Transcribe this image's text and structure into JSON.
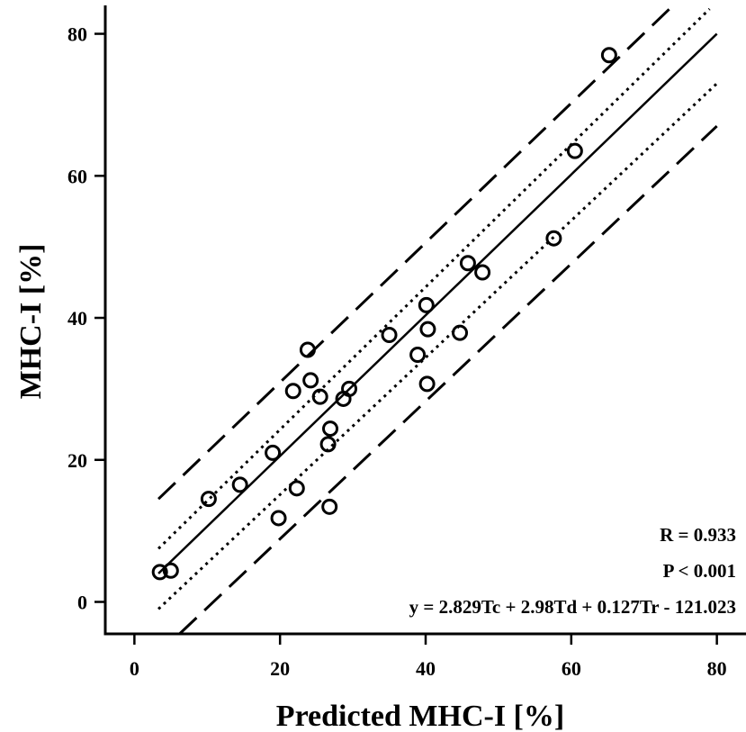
{
  "chart_data": {
    "type": "scatter",
    "xlabel": "Predicted MHC-I [%]",
    "ylabel": "MHC-I [%]",
    "xlim": [
      -4,
      84
    ],
    "ylim": [
      -4.5,
      84
    ],
    "xticks": [
      0,
      20,
      40,
      60,
      80
    ],
    "yticks": [
      0,
      20,
      40,
      60,
      80
    ],
    "points": [
      {
        "x": 3.5,
        "y": 4.2
      },
      {
        "x": 5.0,
        "y": 4.4
      },
      {
        "x": 10.2,
        "y": 14.5
      },
      {
        "x": 14.5,
        "y": 16.5
      },
      {
        "x": 19.0,
        "y": 21.0
      },
      {
        "x": 19.8,
        "y": 11.8
      },
      {
        "x": 21.8,
        "y": 29.7
      },
      {
        "x": 22.3,
        "y": 16.0
      },
      {
        "x": 23.8,
        "y": 35.5
      },
      {
        "x": 24.2,
        "y": 31.2
      },
      {
        "x": 25.5,
        "y": 28.9
      },
      {
        "x": 26.6,
        "y": 22.2
      },
      {
        "x": 26.9,
        "y": 24.4
      },
      {
        "x": 26.8,
        "y": 13.4
      },
      {
        "x": 28.7,
        "y": 28.6
      },
      {
        "x": 29.5,
        "y": 30.0
      },
      {
        "x": 35.0,
        "y": 37.6
      },
      {
        "x": 38.9,
        "y": 34.8
      },
      {
        "x": 40.1,
        "y": 41.8
      },
      {
        "x": 40.3,
        "y": 38.4
      },
      {
        "x": 40.2,
        "y": 30.7
      },
      {
        "x": 44.7,
        "y": 37.9
      },
      {
        "x": 45.8,
        "y": 47.7
      },
      {
        "x": 47.8,
        "y": 46.4
      },
      {
        "x": 57.6,
        "y": 51.2
      },
      {
        "x": 60.5,
        "y": 63.5
      },
      {
        "x": 65.2,
        "y": 77.0
      }
    ],
    "fit_line": {
      "x": [
        3.3,
        80
      ],
      "y": [
        4.0,
        80.0
      ]
    },
    "confidence_band": {
      "upper": {
        "x": [
          3.3,
          79
        ],
        "y": [
          7.5,
          83.5
        ]
      },
      "lower": {
        "x": [
          3.3,
          80
        ],
        "y": [
          -1.0,
          73.0
        ]
      }
    },
    "prediction_band": {
      "upper": {
        "x": [
          3.3,
          74
        ],
        "y": [
          14.5,
          84
        ]
      },
      "lower": {
        "x": [
          6.2,
          80
        ],
        "y": [
          -4.5,
          67.0
        ]
      }
    },
    "annotations": {
      "r": "R = 0.933",
      "p": "P < 0.001",
      "equation": "y = 2.829Tc + 2.98Td + 0.127Tr - 121.023"
    },
    "grid": false,
    "legend": "none"
  }
}
